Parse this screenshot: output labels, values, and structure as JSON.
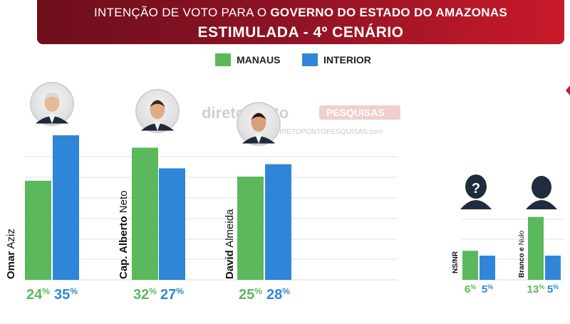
{
  "header": {
    "title_line1_prefix": "INTENÇÃO DE VOTO PARA O",
    "title_line1_strong": "GOVERNO DO ESTADO DO AMAZONAS",
    "title_line2": "ESTIMULADA - 4º CENÁRIO"
  },
  "watermark": {
    "brand": "diretoponto",
    "brand_suffix": "PESQUISAS",
    "url": "DIRETOPONTOPESQUISAS.com"
  },
  "colors": {
    "manaus": "#5cb85c",
    "interior": "#2f86d8",
    "banner": "#8c1224"
  },
  "icons": {
    "unknown": "question-person-icon",
    "blank": "person-silhouette-icon"
  },
  "chart_data": {
    "type": "bar",
    "title": "INTENÇÃO DE VOTO PARA O GOVERNO DO ESTADO DO AMAZONAS — ESTIMULADA - 4º CENÁRIO",
    "legend_position": "top",
    "grid": true,
    "series": [
      {
        "name": "MANAUS",
        "values": [
          24,
          32,
          25,
          6,
          13
        ]
      },
      {
        "name": "INTERIOR",
        "values": [
          35,
          27,
          28,
          5,
          5
        ]
      }
    ],
    "categories": [
      {
        "bold": "Omar",
        "rest": "Aziz"
      },
      {
        "bold": "Cap. Alberto",
        "rest": "Neto"
      },
      {
        "bold": "David",
        "rest": "Almeida"
      },
      {
        "bold": "NS/NR",
        "rest": ""
      },
      {
        "bold": "Branco e",
        "rest": "Nulo"
      }
    ],
    "value_labels": {
      "manaus": [
        "24",
        "32",
        "25",
        "6",
        "13"
      ],
      "interior": [
        "35",
        "27",
        "28",
        "5",
        "5"
      ],
      "unit": "%"
    }
  }
}
